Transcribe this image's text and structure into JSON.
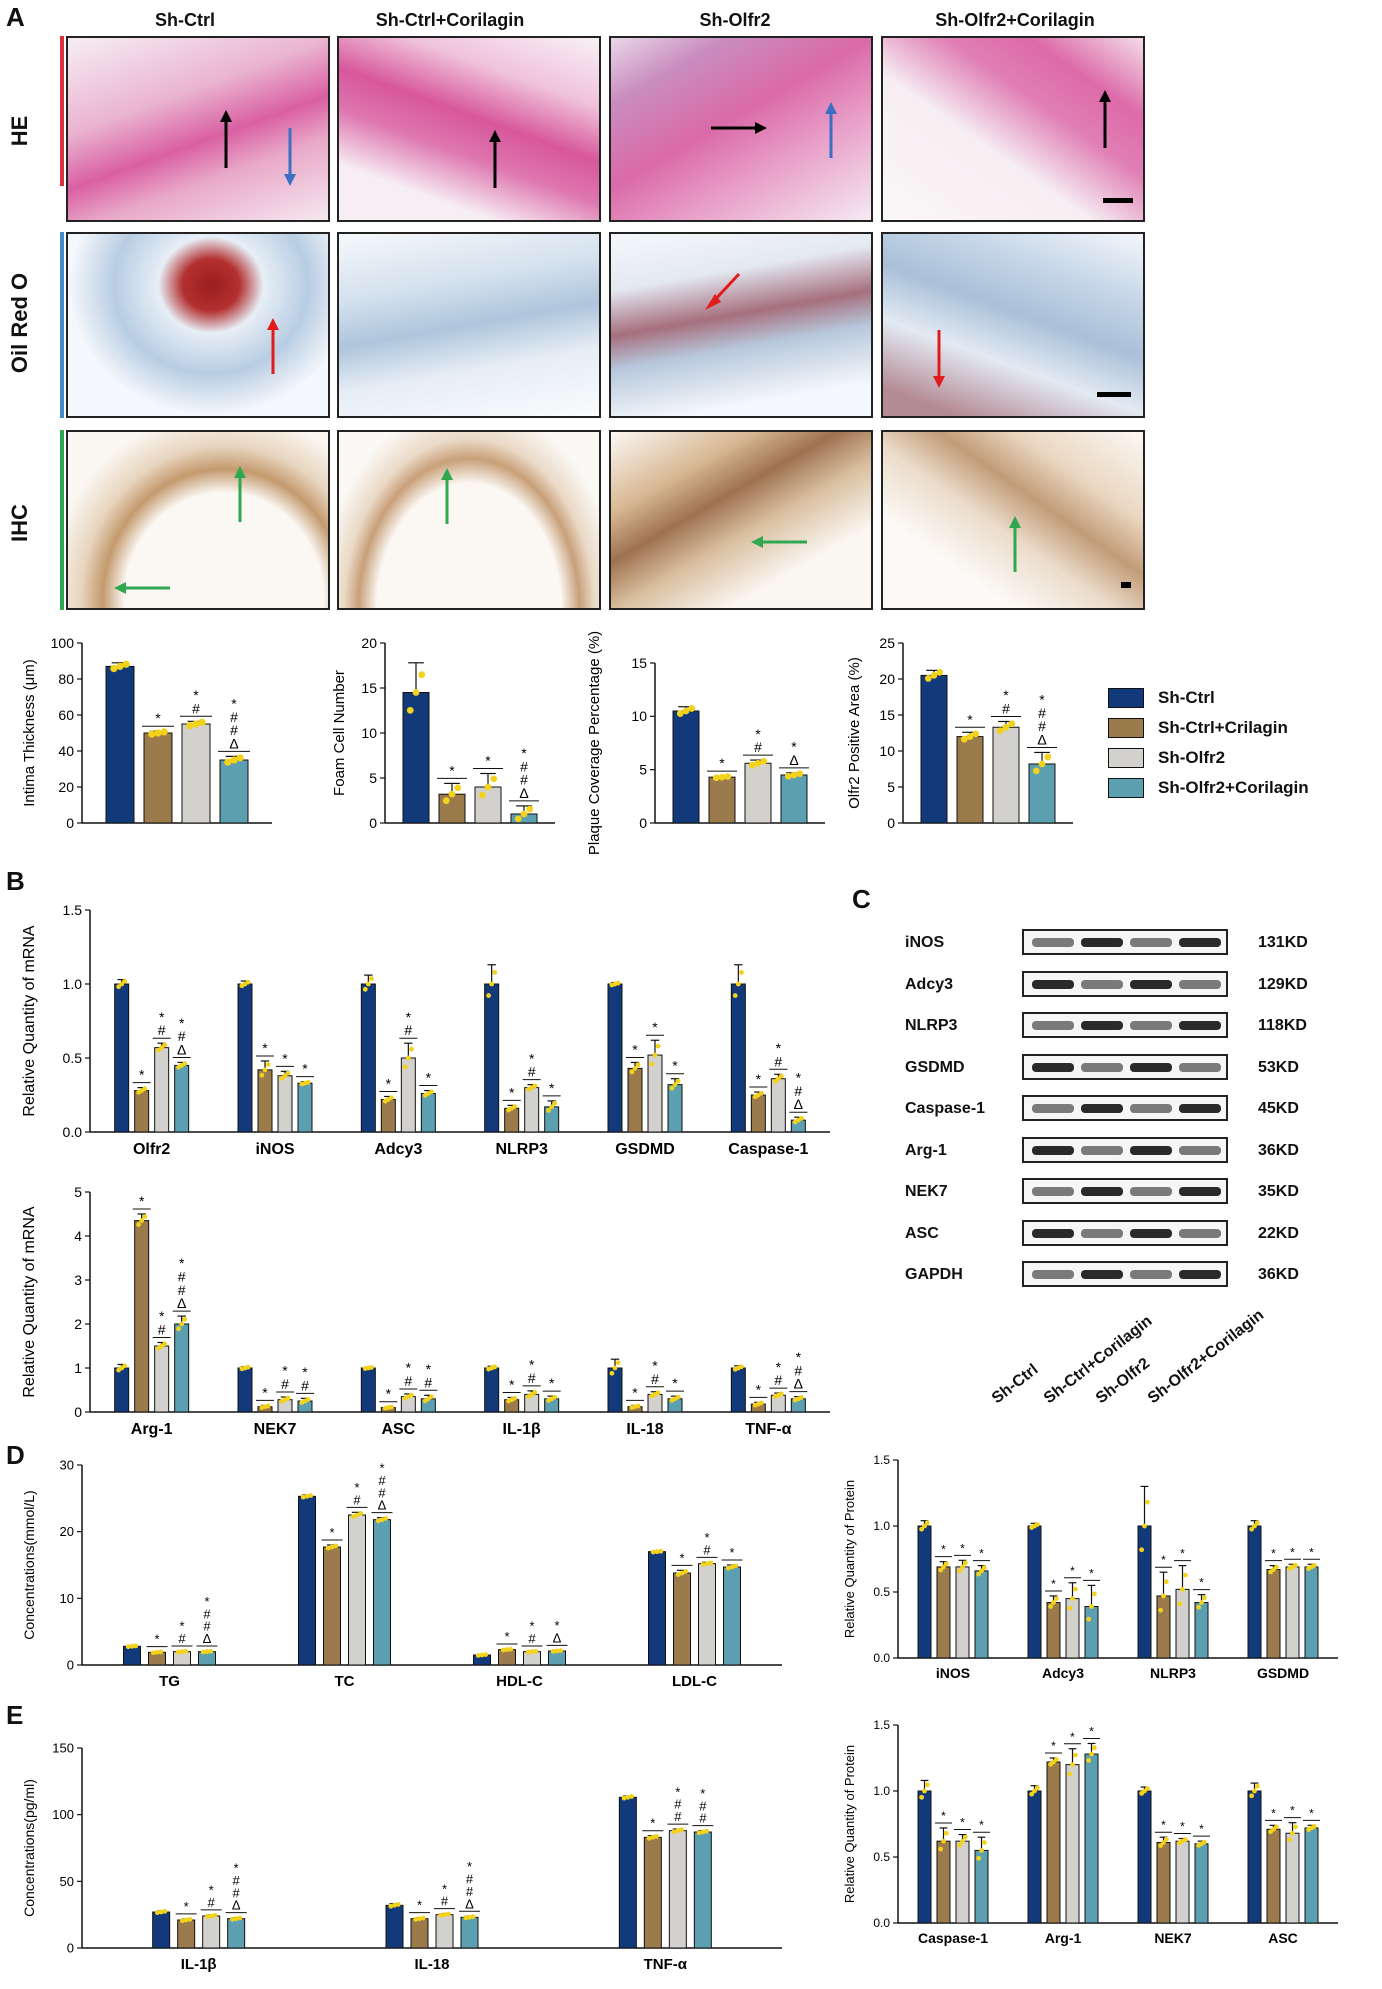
{
  "panels": {
    "A": "A",
    "B": "B",
    "C": "C",
    "D": "D",
    "E": "E"
  },
  "colors": {
    "sh_ctrl": "#123a7a",
    "sh_ctrl_cor": "#9b7a4c",
    "sh_olfr2": "#d3d1cd",
    "sh_olfr2_cor": "#5b9fb1",
    "dot": "#f2d21b"
  },
  "panel_a": {
    "columns": [
      "Sh-Ctrl",
      "Sh-Ctrl+Corilagin",
      "Sh-Olfr2",
      "Sh-Olfr2+Corilagin"
    ],
    "rows": [
      {
        "label": "HE",
        "color": "#d8323a"
      },
      {
        "label": "Oil Red O",
        "color": "#3e8ed0"
      },
      {
        "label": "IHC",
        "color": "#2fa84f"
      }
    ]
  },
  "legend": [
    "Sh-Ctrl",
    "Sh-Ctrl+Crilagin",
    "Sh-Olfr2",
    "Sh-Olfr2+Corilagin"
  ],
  "western_blot": {
    "proteins": [
      {
        "name": "iNOS",
        "kd": "131KD"
      },
      {
        "name": "Adcy3",
        "kd": "129KD"
      },
      {
        "name": "NLRP3",
        "kd": "118KD"
      },
      {
        "name": "GSDMD",
        "kd": "53KD"
      },
      {
        "name": "Caspase-1",
        "kd": "45KD"
      },
      {
        "name": "Arg-1",
        "kd": "36KD"
      },
      {
        "name": "NEK7",
        "kd": "35KD"
      },
      {
        "name": "ASC",
        "kd": "22KD"
      },
      {
        "name": "GAPDH",
        "kd": "36KD"
      }
    ],
    "samples": [
      "Sh-Ctrl",
      "Sh-Ctrl+Corilagin",
      "Sh-Olfr2",
      "Sh-Olfr2+Corilagin"
    ]
  },
  "chart_data": [
    {
      "id": "intima",
      "type": "bar",
      "ylabel": "Intima Thickness (μm)",
      "ylim": [
        0,
        100
      ],
      "ticks": [
        0,
        20,
        40,
        60,
        80,
        100
      ],
      "categories": [
        ""
      ],
      "series": [
        {
          "name": "Sh-Ctrl",
          "values": [
            87
          ]
        },
        {
          "name": "Sh-Ctrl+Crilagin",
          "values": [
            50
          ]
        },
        {
          "name": "Sh-Olfr2",
          "values": [
            55
          ]
        },
        {
          "name": "Sh-Olfr2+Corilagin",
          "values": [
            35
          ]
        }
      ],
      "errors": [
        [
          2
        ],
        [
          1
        ],
        [
          1.5
        ],
        [
          2
        ]
      ],
      "annotations": [
        [
          ""
        ],
        [
          "*"
        ],
        [
          "*\n#"
        ],
        [
          "*\n#\n#\nΔ"
        ]
      ]
    },
    {
      "id": "foam",
      "type": "bar",
      "ylabel": "Foam Cell Number",
      "ylim": [
        0,
        20
      ],
      "ticks": [
        0,
        5,
        10,
        15,
        20
      ],
      "categories": [
        ""
      ],
      "series": [
        {
          "name": "Sh-Ctrl",
          "values": [
            14.5
          ]
        },
        {
          "name": "Sh-Ctrl+Crilagin",
          "values": [
            3.2
          ]
        },
        {
          "name": "Sh-Olfr2",
          "values": [
            4
          ]
        },
        {
          "name": "Sh-Olfr2+Corilagin",
          "values": [
            1
          ]
        }
      ],
      "errors": [
        [
          3.3
        ],
        [
          1.2
        ],
        [
          1.5
        ],
        [
          0.9
        ]
      ],
      "annotations": [
        [
          ""
        ],
        [
          "*"
        ],
        [
          "*"
        ],
        [
          "*\n#\n#\nΔ"
        ]
      ]
    },
    {
      "id": "plaque",
      "type": "bar",
      "ylabel": "Plaque Coverage Percentage (%)",
      "ylim": [
        0,
        15
      ],
      "ticks": [
        0,
        5,
        10,
        15
      ],
      "categories": [
        ""
      ],
      "series": [
        {
          "name": "Sh-Ctrl",
          "values": [
            10.5
          ]
        },
        {
          "name": "Sh-Ctrl+Crilagin",
          "values": [
            4.3
          ]
        },
        {
          "name": "Sh-Olfr2",
          "values": [
            5.6
          ]
        },
        {
          "name": "Sh-Olfr2+Corilagin",
          "values": [
            4.5
          ]
        }
      ],
      "errors": [
        [
          0.4
        ],
        [
          0.1
        ],
        [
          0.3
        ],
        [
          0.2
        ]
      ],
      "annotations": [
        [
          ""
        ],
        [
          "*"
        ],
        [
          "*\n#"
        ],
        [
          "*\nΔ"
        ]
      ]
    },
    {
      "id": "olfr2area",
      "type": "bar",
      "ylabel": "Olfr2 Positive Area (%)",
      "ylim": [
        0,
        25
      ],
      "ticks": [
        0,
        5,
        10,
        15,
        20,
        25
      ],
      "categories": [
        ""
      ],
      "series": [
        {
          "name": "Sh-Ctrl",
          "values": [
            20.5
          ]
        },
        {
          "name": "Sh-Ctrl+Crilagin",
          "values": [
            12
          ]
        },
        {
          "name": "Sh-Olfr2",
          "values": [
            13.3
          ]
        },
        {
          "name": "Sh-Olfr2+Corilagin",
          "values": [
            8.2
          ]
        }
      ],
      "errors": [
        [
          0.7
        ],
        [
          0.6
        ],
        [
          0.8
        ],
        [
          1.6
        ]
      ],
      "annotations": [
        [
          ""
        ],
        [
          "*"
        ],
        [
          "*\n#"
        ],
        [
          "*\n#\n#\nΔ"
        ]
      ]
    },
    {
      "id": "mrna1",
      "type": "bar",
      "ylabel": "Relative Quantity of mRNA",
      "ylim": [
        0,
        1.5
      ],
      "ticks": [
        0.0,
        0.5,
        1.0,
        1.5
      ],
      "tickDecimals": 1,
      "categories": [
        "Olfr2",
        "iNOS",
        "Adcy3",
        "NLRP3",
        "GSDMD",
        "Caspase-1"
      ],
      "series": [
        {
          "name": "Sh-Ctrl",
          "values": [
            1,
            1,
            1,
            1,
            1,
            1
          ]
        },
        {
          "name": "Sh-Ctrl+Crilagin",
          "values": [
            0.28,
            0.42,
            0.22,
            0.16,
            0.43,
            0.25
          ]
        },
        {
          "name": "Sh-Olfr2",
          "values": [
            0.57,
            0.38,
            0.5,
            0.3,
            0.52,
            0.36
          ]
        },
        {
          "name": "Sh-Olfr2+Corilagin",
          "values": [
            0.45,
            0.33,
            0.26,
            0.17,
            0.32,
            0.08
          ]
        }
      ],
      "errors": [
        [
          0.03,
          0.02,
          0.06,
          0.13,
          0.01,
          0.13
        ],
        [
          0.02,
          0.06,
          0.02,
          0.02,
          0.04,
          0.02
        ],
        [
          0.03,
          0.03,
          0.1,
          0.02,
          0.1,
          0.03
        ],
        [
          0.02,
          0.01,
          0.02,
          0.04,
          0.04,
          0.02
        ]
      ],
      "annotations": [
        [
          "",
          "",
          "",
          "",
          "",
          ""
        ],
        [
          "*",
          "*",
          "*",
          "*",
          "*",
          "*"
        ],
        [
          "*\n#",
          "*",
          "*\n#",
          "*\n#",
          "*",
          "*\n#"
        ],
        [
          "*\n#\nΔ",
          "*",
          "*",
          "*",
          "*",
          "*\n#\nΔ"
        ]
      ]
    },
    {
      "id": "mrna2",
      "type": "bar",
      "ylabel": "Relative Quantity of mRNA",
      "ylim": [
        0,
        5
      ],
      "ticks": [
        0,
        1,
        2,
        3,
        4,
        5
      ],
      "categories": [
        "Arg-1",
        "NEK7",
        "ASC",
        "IL-1β",
        "IL-18",
        "TNF-α"
      ],
      "series": [
        {
          "name": "Sh-Ctrl",
          "values": [
            1,
            1,
            1,
            1,
            1,
            1
          ]
        },
        {
          "name": "Sh-Ctrl+Crilagin",
          "values": [
            4.35,
            0.12,
            0.1,
            0.28,
            0.12,
            0.18
          ]
        },
        {
          "name": "Sh-Olfr2",
          "values": [
            1.5,
            0.28,
            0.35,
            0.4,
            0.4,
            0.38
          ]
        },
        {
          "name": "Sh-Olfr2+Corilagin",
          "values": [
            2.0,
            0.25,
            0.3,
            0.3,
            0.3,
            0.3
          ]
        }
      ],
      "errors": [
        [
          0.08,
          0.03,
          0.02,
          0.04,
          0.2,
          0.05
        ],
        [
          0.15,
          0.03,
          0.02,
          0.05,
          0.03,
          0.04
        ],
        [
          0.08,
          0.06,
          0.06,
          0.08,
          0.06,
          0.05
        ],
        [
          0.18,
          0.06,
          0.08,
          0.06,
          0.06,
          0.05
        ]
      ],
      "annotations": [
        [
          "",
          "",
          "",
          "",
          "",
          ""
        ],
        [
          "*",
          "*",
          "*",
          "*",
          "*",
          "*"
        ],
        [
          "*\n#",
          "*\n#",
          "*\n#",
          "*\n#",
          "*\n#",
          "*\n#"
        ],
        [
          "*\n#\n#\nΔ",
          "*\n#",
          "*\n#",
          "*",
          "*",
          "*\n#\nΔ"
        ]
      ]
    },
    {
      "id": "lipids",
      "type": "bar",
      "ylabel": "Concentrations(mmol/L)",
      "ylim": [
        0,
        30
      ],
      "ticks": [
        0,
        10,
        20,
        30
      ],
      "categories": [
        "TG",
        "TC",
        "HDL-C",
        "LDL-C"
      ],
      "series": [
        {
          "name": "Sh-Ctrl",
          "values": [
            2.8,
            25.3,
            1.5,
            17
          ]
        },
        {
          "name": "Sh-Ctrl+Crilagin",
          "values": [
            1.9,
            17.7,
            2.3,
            13.8
          ]
        },
        {
          "name": "Sh-Olfr2",
          "values": [
            2.0,
            22.5,
            2.0,
            15.2
          ]
        },
        {
          "name": "Sh-Olfr2+Corilagin",
          "values": [
            2.0,
            21.8,
            2.1,
            14.7
          ]
        }
      ],
      "errors": [
        [
          0.1,
          0.2,
          0.1,
          0.1
        ],
        [
          0.1,
          0.3,
          0.1,
          0.4
        ],
        [
          0.1,
          0.4,
          0.1,
          0.2
        ],
        [
          0.1,
          0.3,
          0.1,
          0.3
        ]
      ],
      "annotations": [
        [
          "",
          "",
          "",
          ""
        ],
        [
          "*",
          "*",
          "*",
          "*"
        ],
        [
          "*\n#",
          "*\n#",
          "*\n#",
          "*\n#"
        ],
        [
          "*\n#\n#\nΔ",
          "*\n#\n#\nΔ",
          "*\nΔ",
          "*"
        ]
      ]
    },
    {
      "id": "cytokines",
      "type": "bar",
      "ylabel": "Concentrations(pg/ml)",
      "ylim": [
        0,
        150
      ],
      "ticks": [
        0,
        50,
        100,
        150
      ],
      "categories": [
        "IL-1β",
        "IL-18",
        "TNF-α"
      ],
      "series": [
        {
          "name": "Sh-Ctrl",
          "values": [
            27,
            32,
            113
          ]
        },
        {
          "name": "Sh-Ctrl+Crilagin",
          "values": [
            21,
            22,
            83
          ]
        },
        {
          "name": "Sh-Olfr2",
          "values": [
            24,
            25,
            88
          ]
        },
        {
          "name": "Sh-Olfr2+Corilagin",
          "values": [
            22,
            23,
            87
          ]
        }
      ],
      "errors": [
        [
          0.8,
          1.2,
          1
        ],
        [
          0.8,
          0.8,
          1.2
        ],
        [
          0.8,
          0.8,
          1.2
        ],
        [
          0.8,
          0.8,
          1
        ]
      ],
      "annotations": [
        [
          "",
          "",
          ""
        ],
        [
          "*",
          "*",
          "*"
        ],
        [
          "*\n#",
          "*\n#",
          "*\n#\n#"
        ],
        [
          "*\n#\n#\nΔ",
          "*\n#\n#\nΔ",
          "*\n#\n#"
        ]
      ]
    },
    {
      "id": "prot1",
      "type": "bar",
      "ylabel": "Relative Quantity of Protein",
      "ylim": [
        0,
        1.5
      ],
      "ticks": [
        0.0,
        0.5,
        1.0,
        1.5
      ],
      "tickDecimals": 1,
      "categories": [
        "iNOS",
        "Adcy3",
        "NLRP3",
        "GSDMD"
      ],
      "series": [
        {
          "name": "Sh-Ctrl",
          "values": [
            1,
            1,
            1,
            1
          ]
        },
        {
          "name": "Sh-Ctrl+Crilagin",
          "values": [
            0.69,
            0.42,
            0.47,
            0.67
          ]
        },
        {
          "name": "Sh-Olfr2",
          "values": [
            0.69,
            0.45,
            0.52,
            0.69
          ]
        },
        {
          "name": "Sh-Olfr2+Corilagin",
          "values": [
            0.66,
            0.39,
            0.42,
            0.69
          ]
        }
      ],
      "errors": [
        [
          0.04,
          0.02,
          0.3,
          0.04
        ],
        [
          0.04,
          0.05,
          0.18,
          0.03
        ],
        [
          0.05,
          0.12,
          0.18,
          0.02
        ],
        [
          0.04,
          0.16,
          0.06,
          0.02
        ]
      ],
      "annotations": [
        [
          "",
          "",
          "",
          ""
        ],
        [
          "*",
          "*",
          "*",
          "*"
        ],
        [
          "*",
          "*",
          "*",
          "*"
        ],
        [
          "*",
          "*",
          "*",
          "*"
        ]
      ]
    },
    {
      "id": "prot2",
      "type": "bar",
      "ylabel": "Relative Quantity of Protein",
      "ylim": [
        0,
        1.5
      ],
      "ticks": [
        0.0,
        0.5,
        1.0,
        1.5
      ],
      "tickDecimals": 1,
      "categories": [
        "Caspase-1",
        "Arg-1",
        "NEK7",
        "ASC"
      ],
      "series": [
        {
          "name": "Sh-Ctrl",
          "values": [
            1,
            1,
            1,
            1
          ]
        },
        {
          "name": "Sh-Ctrl+Crilagin",
          "values": [
            0.62,
            1.22,
            0.61,
            0.71
          ]
        },
        {
          "name": "Sh-Olfr2",
          "values": [
            0.62,
            1.2,
            0.62,
            0.68
          ]
        },
        {
          "name": "Sh-Olfr2+Corilagin",
          "values": [
            0.55,
            1.28,
            0.6,
            0.72
          ]
        }
      ],
      "errors": [
        [
          0.08,
          0.04,
          0.03,
          0.06
        ],
        [
          0.1,
          0.03,
          0.04,
          0.03
        ],
        [
          0.05,
          0.12,
          0.02,
          0.08
        ],
        [
          0.1,
          0.08,
          0.02,
          0.02
        ]
      ],
      "annotations": [
        [
          "",
          "",
          "",
          ""
        ],
        [
          "*",
          "*",
          "*",
          "*"
        ],
        [
          "*",
          "*",
          "*",
          "*"
        ],
        [
          "*",
          "*",
          "*",
          "*"
        ]
      ]
    }
  ]
}
